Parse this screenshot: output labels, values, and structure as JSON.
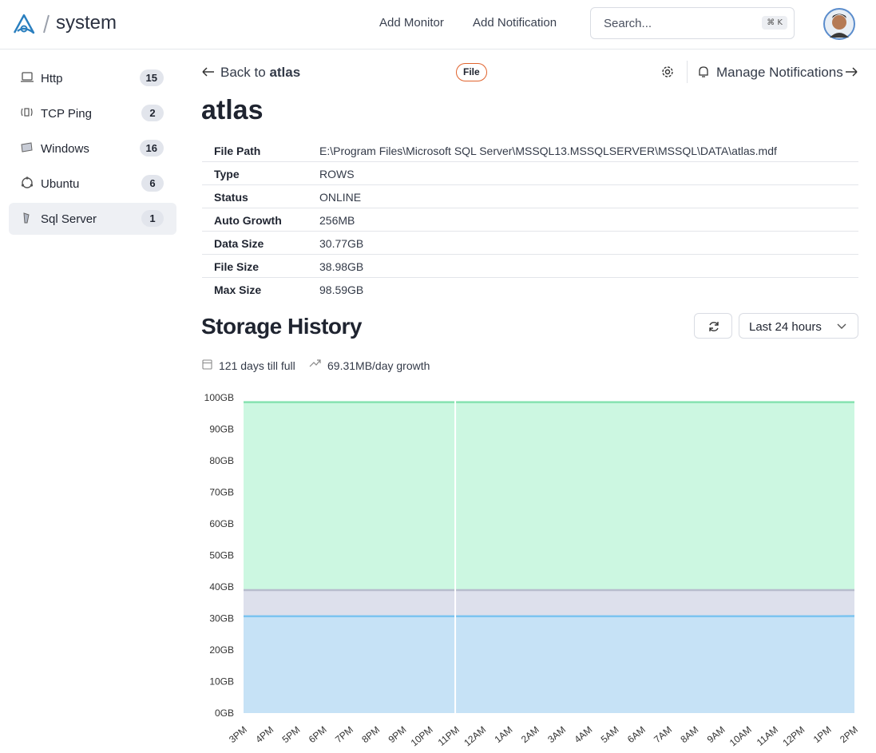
{
  "header": {
    "brand": "system",
    "nav": [
      "Add Monitor",
      "Add Notification"
    ],
    "search": "Search...",
    "shortcut": "⌘ K"
  },
  "sidebar": [
    {
      "label": "Http",
      "count": 15
    },
    {
      "label": "TCP Ping",
      "count": 2
    },
    {
      "label": "Windows",
      "count": 16
    },
    {
      "label": "Ubuntu",
      "count": 6
    },
    {
      "label": "Sql Server",
      "count": 1
    }
  ],
  "page": {
    "back_prefix": "Back to",
    "back_target": "atlas",
    "badge": "File",
    "manage": "Manage Notifications",
    "title": "atlas"
  },
  "details": [
    [
      "File Path",
      "E:\\Program Files\\Microsoft SQL Server\\MSSQL13.MSSQLSERVER\\MSSQL\\DATA\\atlas.mdf"
    ],
    [
      "Type",
      "ROWS"
    ],
    [
      "Status",
      "ONLINE"
    ],
    [
      "Auto Growth",
      "256MB"
    ],
    [
      "Data Size",
      "30.77GB"
    ],
    [
      "File Size",
      "38.98GB"
    ],
    [
      "Max Size",
      "98.59GB"
    ]
  ],
  "storage": {
    "title": "Storage History",
    "range": "Last 24 hours",
    "days_till_full": "121 days till full",
    "growth": "69.31MB/day growth"
  },
  "chart_data": {
    "type": "area",
    "categories": [
      "3PM",
      "4PM",
      "5PM",
      "6PM",
      "7PM",
      "8PM",
      "9PM",
      "10PM",
      "11PM",
      "12AM",
      "1AM",
      "2AM",
      "3AM",
      "4AM",
      "5AM",
      "6AM",
      "7AM",
      "8AM",
      "9AM",
      "10AM",
      "11AM",
      "12PM",
      "1PM",
      "2PM"
    ],
    "series": [
      {
        "color": "#7cc4f0",
        "fill": "#c6e2f6",
        "values": [
          30.7,
          30.7,
          30.7,
          30.7,
          30.7,
          30.7,
          30.7,
          30.7,
          30.7,
          30.7,
          30.7,
          30.7,
          30.7,
          30.7,
          30.7,
          30.7,
          30.7,
          30.7,
          30.7,
          30.7,
          30.7,
          30.7,
          30.7,
          30.77
        ]
      },
      {
        "color": "#b7bccd",
        "fill": "#dde0ec",
        "values": [
          38.98,
          38.98,
          38.98,
          38.98,
          38.98,
          38.98,
          38.98,
          38.98,
          38.98,
          38.98,
          38.98,
          38.98,
          38.98,
          38.98,
          38.98,
          38.98,
          38.98,
          38.98,
          38.98,
          38.98,
          38.98,
          38.98,
          38.98,
          38.98
        ]
      },
      {
        "color": "#86e2b0",
        "fill": "#ccf7e1",
        "values": [
          98.59,
          98.59,
          98.59,
          98.59,
          98.59,
          98.59,
          98.59,
          98.59,
          98.59,
          98.59,
          98.59,
          98.59,
          98.59,
          98.59,
          98.59,
          98.59,
          98.59,
          98.59,
          98.59,
          98.59,
          98.59,
          98.59,
          98.59,
          98.59
        ]
      }
    ],
    "ylim": [
      0,
      100
    ],
    "yticks": [
      {
        "value": 0,
        "label": "0GB"
      },
      {
        "value": 10,
        "label": "10GB"
      },
      {
        "value": 20,
        "label": "20GB"
      },
      {
        "value": 30,
        "label": "30GB"
      },
      {
        "value": 40,
        "label": "40GB"
      },
      {
        "value": 50,
        "label": "50GB"
      },
      {
        "value": 60,
        "label": "60GB"
      },
      {
        "value": 70,
        "label": "70GB"
      },
      {
        "value": 80,
        "label": "80GB"
      },
      {
        "value": 90,
        "label": "90GB"
      },
      {
        "value": 100,
        "label": "100GB"
      }
    ],
    "grid": false
  }
}
